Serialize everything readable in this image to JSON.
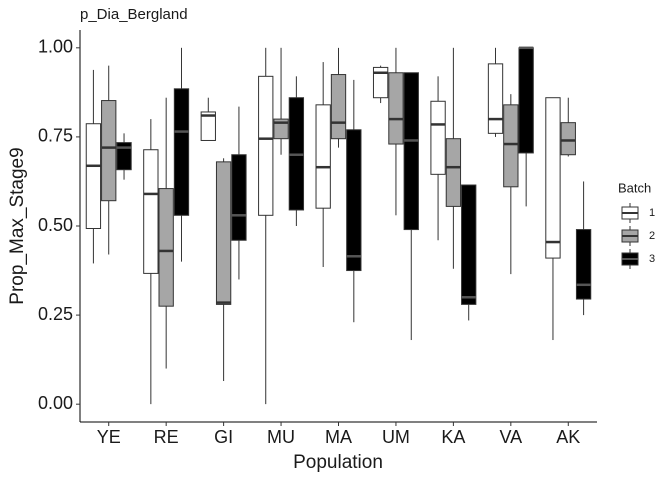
{
  "chart_data": {
    "type": "boxplot",
    "title": "p_Dia_Bergland",
    "x_label": "Population",
    "y_label": "Prop_Max_Stage9",
    "legend_title": "Batch",
    "legend_position": "right",
    "categories": [
      "YE",
      "RE",
      "GI",
      "MU",
      "MA",
      "UM",
      "KA",
      "VA",
      "AK"
    ],
    "ylim": [
      -0.05,
      1.05
    ],
    "yticks": [
      {
        "value": 0,
        "label": "0.00"
      },
      {
        "value": 0.25,
        "label": "0.25"
      },
      {
        "value": 0.5,
        "label": "0.50"
      },
      {
        "value": 0.75,
        "label": "0.75"
      },
      {
        "value": 1,
        "label": "1.00"
      }
    ],
    "outline_color": "#333333",
    "series": [
      {
        "name": "1",
        "color": "#ffffff",
        "min": [
          0.395,
          0.0,
          0.74,
          0.0,
          0.385,
          0.845,
          0.46,
          0.75,
          0.18
        ],
        "q1": [
          0.493,
          0.367,
          0.74,
          0.53,
          0.55,
          0.86,
          0.645,
          0.76,
          0.41
        ],
        "median": [
          0.669,
          0.59,
          0.81,
          0.745,
          0.665,
          0.93,
          0.785,
          0.8,
          0.455
        ],
        "q3": [
          0.787,
          0.714,
          0.82,
          0.92,
          0.84,
          0.945,
          0.85,
          0.955,
          0.86
        ],
        "max": [
          0.938,
          0.8,
          0.86,
          1.0,
          0.96,
          0.95,
          0.92,
          1.0,
          0.86
        ]
      },
      {
        "name": "2",
        "color": "#a6a6a6",
        "min": [
          0.42,
          0.1,
          0.065,
          0.7,
          0.72,
          0.53,
          0.38,
          0.365,
          0.695
        ],
        "q1": [
          0.571,
          0.275,
          0.28,
          0.745,
          0.745,
          0.73,
          0.555,
          0.61,
          0.7
        ],
        "median": [
          0.72,
          0.43,
          0.285,
          0.79,
          0.79,
          0.8,
          0.665,
          0.73,
          0.74
        ],
        "q3": [
          0.852,
          0.605,
          0.68,
          0.8,
          0.925,
          0.93,
          0.745,
          0.84,
          0.79
        ],
        "max": [
          0.95,
          0.86,
          0.69,
          1.0,
          1.0,
          1.0,
          1.0,
          0.87,
          0.86
        ]
      },
      {
        "name": "3",
        "color": "#000000",
        "min": [
          0.63,
          0.4,
          0.35,
          0.5,
          0.23,
          0.18,
          0.235,
          0.555,
          0.25
        ],
        "q1": [
          0.658,
          0.53,
          0.46,
          0.545,
          0.375,
          0.49,
          0.28,
          0.705,
          0.295
        ],
        "median": [
          0.72,
          0.765,
          0.53,
          0.7,
          0.415,
          0.74,
          0.3,
          1.0,
          0.335
        ],
        "q3": [
          0.734,
          0.885,
          0.7,
          0.86,
          0.77,
          0.93,
          0.615,
          1.0,
          0.49
        ],
        "max": [
          0.76,
          1.0,
          0.835,
          0.92,
          0.91,
          0.93,
          0.615,
          1.0,
          0.625
        ]
      }
    ]
  }
}
